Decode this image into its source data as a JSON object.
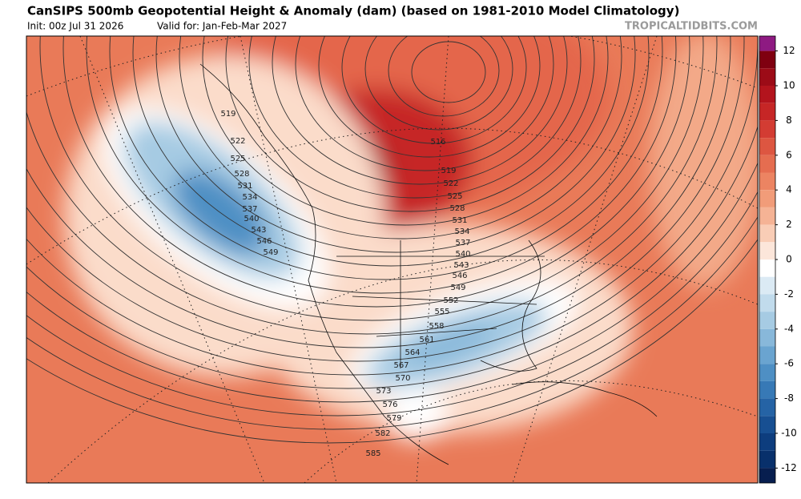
{
  "header": {
    "title": "CanSIPS 500mb Geopotential Height & Anomaly (dam) (based on 1981-2010 Model Climatology)",
    "init": "Init: 00z Jul 31 2026",
    "valid": "Valid for: Jan-Feb-Mar 2027",
    "site": "TROPICALTIDBITS.COM"
  },
  "colorbar": {
    "ticks": [
      12,
      10,
      8,
      6,
      4,
      2,
      0,
      -2,
      -4,
      -6,
      -8,
      -10,
      -12
    ],
    "colors": [
      "#8e1a82",
      "#7f0010",
      "#9c0b17",
      "#b3141d",
      "#c62626",
      "#d33c33",
      "#dd5641",
      "#e56d50",
      "#ec8462",
      "#f19c79",
      "#f5b395",
      "#f9cdb6",
      "#fce6da",
      "#ffffff",
      "#dbeaf4",
      "#c1dbec",
      "#a6cbe3",
      "#88b8da",
      "#6aa4d0",
      "#4e8fc4",
      "#3779b6",
      "#2563a5",
      "#174f92",
      "#0d3d7e",
      "#08306b",
      "#071e4f"
    ]
  },
  "contours": {
    "labels": [
      519,
      522,
      525,
      528,
      531,
      534,
      537,
      540,
      543,
      546,
      549,
      516,
      519,
      522,
      525,
      528,
      531,
      534,
      537,
      540,
      543,
      546,
      549,
      552,
      555,
      558,
      561,
      564,
      567,
      570,
      573,
      576,
      579,
      582,
      585
    ]
  }
}
